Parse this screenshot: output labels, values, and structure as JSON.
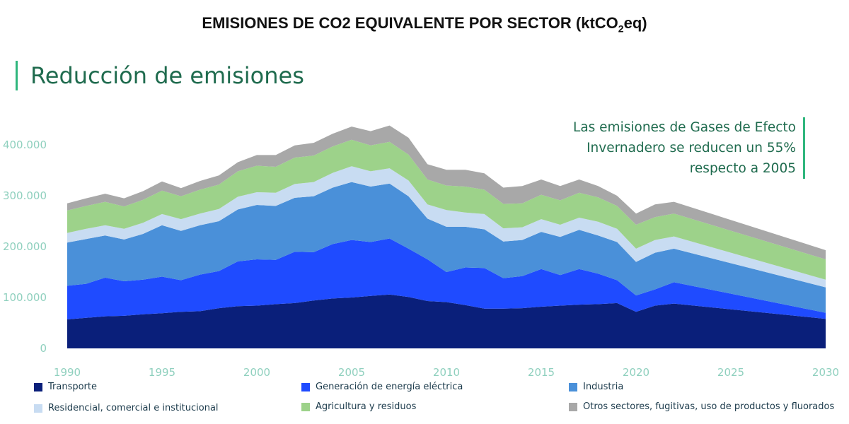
{
  "header": {
    "title_main": "EMISIONES DE CO2 EQUIVALENTE POR SECTOR (ktCO",
    "title_sub": "2",
    "title_end": "eq)",
    "section_title": "Reducción de emisiones"
  },
  "annotation": {
    "lines": [
      "Las emisiones de Gases de Efecto",
      "Invernadero se reducen un 55%",
      "respecto a 2005"
    ]
  },
  "chart_data": {
    "type": "area",
    "stacked": true,
    "xlim": [
      1990,
      2030
    ],
    "ylim": [
      0,
      450000
    ],
    "x_ticks": [
      "1990",
      "1995",
      "2000",
      "2005",
      "2010",
      "2015",
      "2020",
      "2025",
      "2030"
    ],
    "y_ticks": [
      "0",
      "100.000",
      "200.000",
      "300.000",
      "400.000"
    ],
    "legend_position": "bottom",
    "x": [
      1990,
      1991,
      1992,
      1993,
      1994,
      1995,
      1996,
      1997,
      1998,
      1999,
      2000,
      2001,
      2002,
      2003,
      2004,
      2005,
      2006,
      2007,
      2008,
      2009,
      2010,
      2011,
      2012,
      2013,
      2014,
      2015,
      2016,
      2017,
      2018,
      2019,
      2020,
      2021,
      2022,
      2030
    ],
    "series": [
      {
        "name": "Transporte",
        "color": "#0a1f7a",
        "values": [
          57000,
          60000,
          63000,
          64000,
          67000,
          69000,
          72000,
          73000,
          79000,
          83000,
          84000,
          87000,
          89000,
          94000,
          98000,
          100000,
          103000,
          106000,
          101000,
          93000,
          91000,
          85000,
          78000,
          78000,
          79000,
          82000,
          84000,
          86000,
          87000,
          89000,
          72000,
          84000,
          88000,
          58000
        ]
      },
      {
        "name": "Generación de energía eléctrica",
        "color": "#1f4bff",
        "values": [
          66000,
          67000,
          76000,
          68000,
          68000,
          72000,
          62000,
          72000,
          73000,
          88000,
          91000,
          87000,
          101000,
          95000,
          107000,
          113000,
          106000,
          110000,
          95000,
          82000,
          59000,
          74000,
          80000,
          60000,
          63000,
          74000,
          60000,
          70000,
          60000,
          45000,
          32000,
          32000,
          42000,
          12000
        ]
      },
      {
        "name": "Industria",
        "color": "#4a90d9",
        "values": [
          85000,
          88000,
          83000,
          82000,
          90000,
          101000,
          97000,
          97000,
          98000,
          102000,
          107000,
          106000,
          106000,
          110000,
          111000,
          114000,
          109000,
          108000,
          103000,
          80000,
          89000,
          80000,
          76000,
          72000,
          71000,
          73000,
          75000,
          77000,
          75000,
          75000,
          66000,
          72000,
          66000,
          50000
        ]
      },
      {
        "name": "Residencial, comercial e institucional",
        "color": "#c8dcf2",
        "values": [
          19000,
          20000,
          20000,
          21000,
          22000,
          22000,
          23000,
          23000,
          24000,
          25000,
          25000,
          26000,
          27000,
          28000,
          29000,
          31000,
          30000,
          30000,
          31000,
          28000,
          33000,
          28000,
          30000,
          26000,
          25000,
          25000,
          24000,
          24000,
          27000,
          26000,
          26000,
          25000,
          24000,
          15000
        ]
      },
      {
        "name": "Agricultura y residuos",
        "color": "#9dd28a",
        "values": [
          44000,
          45000,
          46000,
          44000,
          45000,
          46000,
          45000,
          47000,
          48000,
          50000,
          52000,
          51000,
          52000,
          52000,
          52000,
          52000,
          51000,
          52000,
          51000,
          49000,
          48000,
          51000,
          48000,
          48000,
          47000,
          48000,
          48000,
          49000,
          48000,
          45000,
          47000,
          45000,
          45000,
          40000
        ]
      },
      {
        "name": "Otros sectores, fugitivas, uso de productos y fluorados",
        "color": "#a8a8a8",
        "values": [
          14000,
          15000,
          16000,
          16000,
          17000,
          18000,
          16000,
          17000,
          18000,
          18000,
          21000,
          23000,
          24000,
          25000,
          25000,
          26000,
          28000,
          32000,
          33000,
          30000,
          31000,
          33000,
          32000,
          32000,
          34000,
          30000,
          28000,
          26000,
          22000,
          20000,
          22000,
          25000,
          23000,
          18000
        ]
      }
    ]
  }
}
